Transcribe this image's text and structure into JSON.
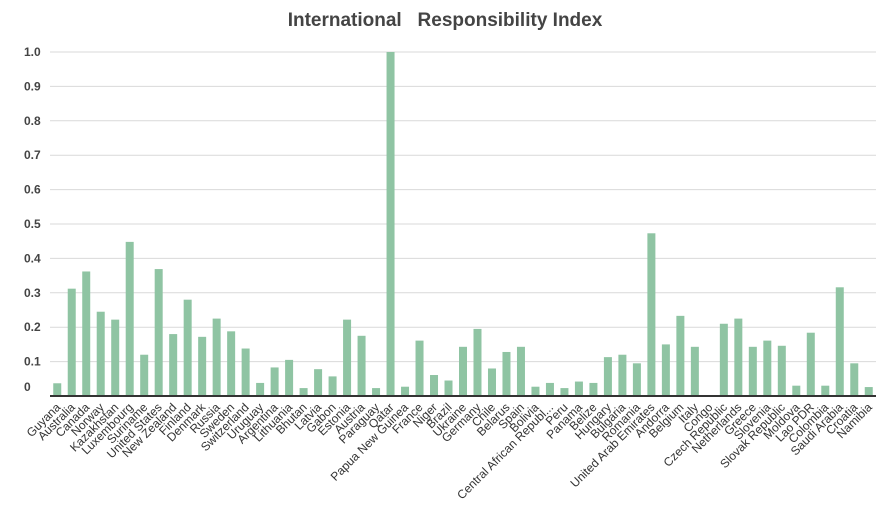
{
  "chart_data": {
    "type": "bar",
    "title": "International   Responsibility Index",
    "xlabel": "",
    "ylabel": "",
    "ylim": [
      0,
      1.0
    ],
    "y_ticks": [
      "0",
      "0.1",
      "0.2",
      "0.3",
      "0.4",
      "0.5",
      "0.6",
      "0.7",
      "0.8",
      "0.9",
      "1.0"
    ],
    "grid": true,
    "bar_color": "#8fc4a3",
    "categories": [
      "Guyana",
      "Australia",
      "Canada",
      "Norway",
      "Kazakhstan",
      "Luxembourg",
      "Suriname",
      "United States",
      "New Zealand",
      "Finland",
      "Denmark",
      "Russia",
      "Sweden",
      "Switzerland",
      "Uruguay",
      "Argentina",
      "Lithuania",
      "Bhutan",
      "Latvia",
      "Gabon",
      "Estonia",
      "Austria",
      "Paraguay",
      "Qatar",
      "Papua New Guinea",
      "France",
      "Niger",
      "Brazil",
      "Ukraine",
      "Germany",
      "Chile",
      "Belarus",
      "Spain",
      "Bolivia",
      "Central African Republ...",
      "Peru",
      "Panama",
      "Belize",
      "Hungary",
      "Bulgaria",
      "Romania",
      "United Arab Emirates",
      "Andorra",
      "Belgium",
      "Italy",
      "Congo",
      "Czech Republic",
      "Netherlands",
      "Greece",
      "Slovenia",
      "Slovak Republic",
      "Moldova",
      "Lao PDR",
      "Colombia",
      "Saudi Arabia",
      "Croatia",
      "Namibia"
    ],
    "values": [
      0.037,
      0.312,
      0.362,
      0.245,
      0.222,
      0.448,
      0.12,
      0.369,
      0.18,
      0.28,
      0.172,
      0.225,
      0.188,
      0.138,
      0.038,
      0.083,
      0.105,
      0.023,
      0.078,
      0.057,
      0.222,
      0.175,
      0.023,
      1.0,
      0.027,
      0.161,
      0.061,
      0.045,
      0.143,
      0.195,
      0.08,
      0.128,
      0.143,
      0.027,
      0.038,
      0.023,
      0.042,
      0.038,
      0.113,
      0.12,
      0.095,
      0.473,
      0.15,
      0.233,
      0.143,
      0.0,
      0.21,
      0.225,
      0.143,
      0.161,
      0.146,
      0.03,
      0.184,
      0.03,
      0.316,
      0.095,
      0.026
    ]
  }
}
